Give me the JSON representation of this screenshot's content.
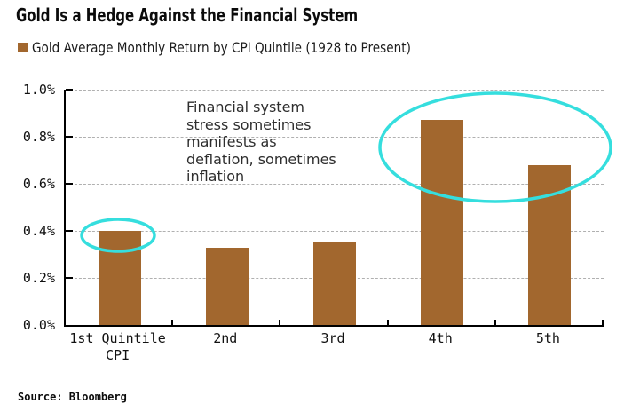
{
  "header": {
    "title": "Gold Is a Hedge Against the Financial System"
  },
  "legend": {
    "label": "Gold Average Monthly Return by CPI Quintile (1928 to Present)",
    "swatch_color": "#a2672e"
  },
  "source": {
    "label": "Source: Bloomberg"
  },
  "chart_data": {
    "type": "bar",
    "title": "Gold Average Monthly Return by CPI Quintile (1928 to Present)",
    "categories": [
      "1st Quintile\nCPI",
      "2nd",
      "3rd",
      "4th",
      "5th"
    ],
    "values": [
      0.4,
      0.33,
      0.35,
      0.87,
      0.68
    ],
    "unit": "%",
    "xlabel": "",
    "ylabel": "",
    "ylim": [
      0,
      1.0
    ],
    "yticks": [
      0,
      0.2,
      0.4,
      0.6,
      0.8,
      1.0
    ],
    "ytick_labels": [
      "0.0%",
      "0.2%",
      "0.4%",
      "0.6%",
      "0.8%",
      "1.0%"
    ],
    "grid": "horizontal-dashed",
    "legend_position": "top-left",
    "bar_color": "#a2672e",
    "annotation": {
      "text": "Financial system\nstress sometimes\nmanifests as\ndeflation, sometimes\ninflation",
      "highlight_color": "#35dede",
      "highlighted_bars": [
        "1st Quintile CPI",
        "4th",
        "5th"
      ]
    }
  }
}
